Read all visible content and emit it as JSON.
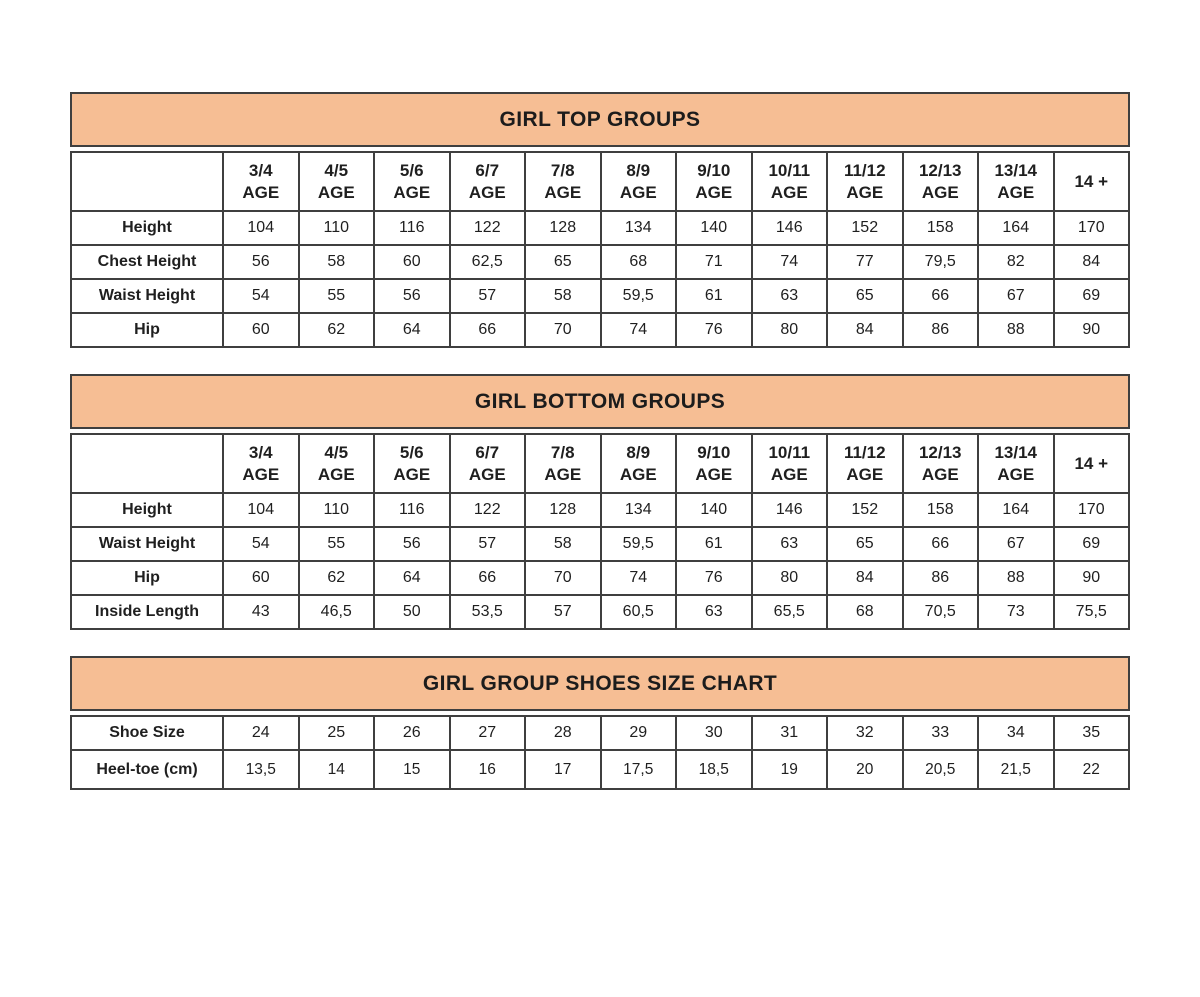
{
  "colors": {
    "band_background": "#f6be94",
    "border": "#3f3f3f",
    "text": "#1f1f1f",
    "page_background": "#ffffff"
  },
  "tables": [
    {
      "title": "GIRL TOP GROUPS",
      "columns": [
        {
          "line1": "3/4",
          "line2": "AGE"
        },
        {
          "line1": "4/5",
          "line2": "AGE"
        },
        {
          "line1": "5/6",
          "line2": "AGE"
        },
        {
          "line1": "6/7",
          "line2": "AGE"
        },
        {
          "line1": "7/8",
          "line2": "AGE"
        },
        {
          "line1": "8/9",
          "line2": "AGE"
        },
        {
          "line1": "9/10",
          "line2": "AGE"
        },
        {
          "line1": "10/11",
          "line2": "AGE"
        },
        {
          "line1": "11/12",
          "line2": "AGE"
        },
        {
          "line1": "12/13",
          "line2": "AGE"
        },
        {
          "line1": "13/14",
          "line2": "AGE"
        },
        {
          "line1": "14 +",
          "line2": ""
        }
      ],
      "rows": [
        {
          "label": "Height",
          "values": [
            "104",
            "110",
            "116",
            "122",
            "128",
            "134",
            "140",
            "146",
            "152",
            "158",
            "164",
            "170"
          ]
        },
        {
          "label": "Chest Height",
          "values": [
            "56",
            "58",
            "60",
            "62,5",
            "65",
            "68",
            "71",
            "74",
            "77",
            "79,5",
            "82",
            "84"
          ]
        },
        {
          "label": "Waist Height",
          "values": [
            "54",
            "55",
            "56",
            "57",
            "58",
            "59,5",
            "61",
            "63",
            "65",
            "66",
            "67",
            "69"
          ]
        },
        {
          "label": "Hip",
          "values": [
            "60",
            "62",
            "64",
            "66",
            "70",
            "74",
            "76",
            "80",
            "84",
            "86",
            "88",
            "90"
          ]
        }
      ]
    },
    {
      "title": "GIRL BOTTOM GROUPS",
      "columns": [
        {
          "line1": "3/4",
          "line2": "AGE"
        },
        {
          "line1": "4/5",
          "line2": "AGE"
        },
        {
          "line1": "5/6",
          "line2": "AGE"
        },
        {
          "line1": "6/7",
          "line2": "AGE"
        },
        {
          "line1": "7/8",
          "line2": "AGE"
        },
        {
          "line1": "8/9",
          "line2": "AGE"
        },
        {
          "line1": "9/10",
          "line2": "AGE"
        },
        {
          "line1": "10/11",
          "line2": "AGE"
        },
        {
          "line1": "11/12",
          "line2": "AGE"
        },
        {
          "line1": "12/13",
          "line2": "AGE"
        },
        {
          "line1": "13/14",
          "line2": "AGE"
        },
        {
          "line1": "14 +",
          "line2": ""
        }
      ],
      "rows": [
        {
          "label": "Height",
          "values": [
            "104",
            "110",
            "116",
            "122",
            "128",
            "134",
            "140",
            "146",
            "152",
            "158",
            "164",
            "170"
          ]
        },
        {
          "label": "Waist Height",
          "values": [
            "54",
            "55",
            "56",
            "57",
            "58",
            "59,5",
            "61",
            "63",
            "65",
            "66",
            "67",
            "69"
          ]
        },
        {
          "label": "Hip",
          "values": [
            "60",
            "62",
            "64",
            "66",
            "70",
            "74",
            "76",
            "80",
            "84",
            "86",
            "88",
            "90"
          ]
        },
        {
          "label": "Inside Length",
          "values": [
            "43",
            "46,5",
            "50",
            "53,5",
            "57",
            "60,5",
            "63",
            "65,5",
            "68",
            "70,5",
            "73",
            "75,5"
          ]
        }
      ]
    },
    {
      "title": "GIRL GROUP SHOES SIZE CHART",
      "columns": null,
      "rows": [
        {
          "label": "Shoe Size",
          "values": [
            "24",
            "25",
            "26",
            "27",
            "28",
            "29",
            "30",
            "31",
            "32",
            "33",
            "34",
            "35"
          ]
        },
        {
          "label": "Heel-toe (cm)",
          "values": [
            "13,5",
            "14",
            "15",
            "16",
            "17",
            "17,5",
            "18,5",
            "19",
            "20",
            "20,5",
            "21,5",
            "22"
          ]
        }
      ]
    }
  ]
}
